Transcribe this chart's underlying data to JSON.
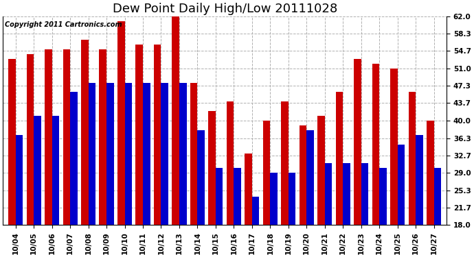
{
  "title": "Dew Point Daily High/Low 20111028",
  "copyright": "Copyright 2011 Cartronics.com",
  "dates": [
    "10/04",
    "10/05",
    "10/06",
    "10/07",
    "10/08",
    "10/09",
    "10/10",
    "10/11",
    "10/12",
    "10/13",
    "10/14",
    "10/15",
    "10/16",
    "10/17",
    "10/18",
    "10/19",
    "10/20",
    "10/21",
    "10/22",
    "10/23",
    "10/24",
    "10/25",
    "10/26",
    "10/27"
  ],
  "highs": [
    53,
    54,
    55,
    55,
    57,
    55,
    61,
    56,
    56,
    62,
    48,
    42,
    44,
    33,
    40,
    44,
    39,
    41,
    46,
    53,
    52,
    51,
    46,
    40
  ],
  "lows": [
    37,
    41,
    41,
    46,
    48,
    48,
    48,
    48,
    48,
    48,
    38,
    30,
    30,
    24,
    29,
    29,
    38,
    31,
    31,
    31,
    30,
    35,
    37,
    30
  ],
  "high_color": "#cc0000",
  "low_color": "#0000cc",
  "background_color": "#ffffff",
  "grid_color": "#b0b0b0",
  "ymin": 18.0,
  "ymax": 62.0,
  "yticks": [
    18.0,
    21.7,
    25.3,
    29.0,
    32.7,
    36.3,
    40.0,
    43.7,
    47.3,
    51.0,
    54.7,
    58.3,
    62.0
  ],
  "bar_width": 0.4,
  "title_fontsize": 13,
  "tick_fontsize": 7.5,
  "copyright_fontsize": 7,
  "figwidth": 6.9,
  "figheight": 3.75,
  "dpi": 100
}
